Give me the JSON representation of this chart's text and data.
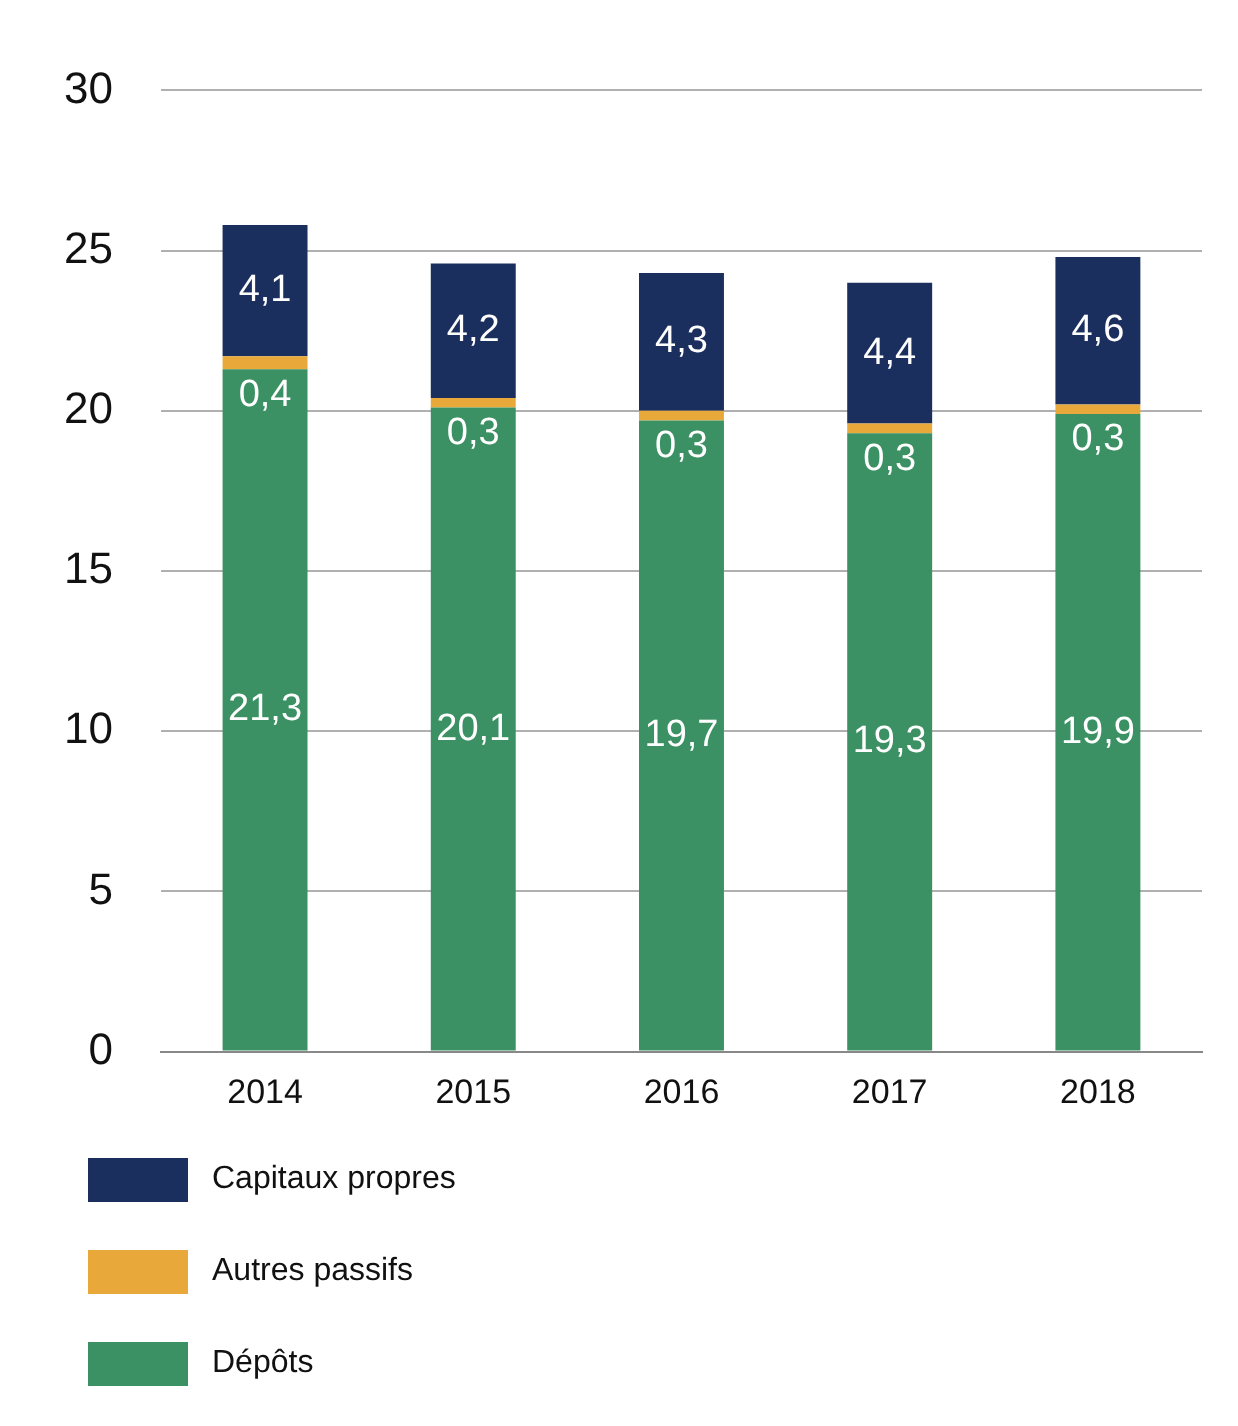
{
  "chart_data": {
    "type": "bar",
    "stacked": true,
    "categories": [
      "2014",
      "2015",
      "2016",
      "2017",
      "2018"
    ],
    "series": [
      {
        "name": "Dépôts",
        "color": "#3b9163",
        "values": [
          21.3,
          20.1,
          19.7,
          19.3,
          19.9
        ],
        "value_labels": [
          "21,3",
          "20,1",
          "19,7",
          "19,3",
          "19,9"
        ]
      },
      {
        "name": "Autres passifs",
        "color": "#e9a93a",
        "values": [
          0.4,
          0.3,
          0.3,
          0.3,
          0.3
        ],
        "value_labels": [
          "0,4",
          "0,3",
          "0,3",
          "0,3",
          "0,3"
        ]
      },
      {
        "name": "Capitaux propres",
        "color": "#1b2f5e",
        "values": [
          4.1,
          4.2,
          4.3,
          4.4,
          4.6
        ],
        "value_labels": [
          "4,1",
          "4,2",
          "4,3",
          "4,4",
          "4,6"
        ]
      }
    ],
    "ylim": [
      0,
      30
    ],
    "yticks": [
      0,
      5,
      10,
      15,
      20,
      25,
      30
    ],
    "grid": "y",
    "legend": "bottom"
  }
}
